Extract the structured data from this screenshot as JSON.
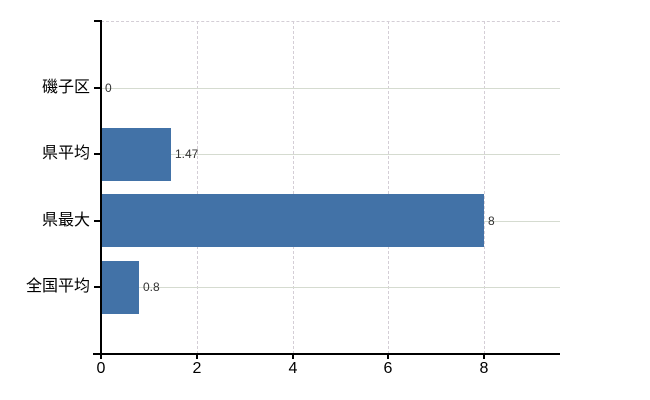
{
  "chart_data": {
    "type": "bar",
    "orientation": "horizontal",
    "title": "",
    "xlabel": "",
    "ylabel": "",
    "categories": [
      "磯子区",
      "県平均",
      "県最大",
      "全国平均"
    ],
    "values": [
      0,
      1.47,
      8,
      0.8
    ],
    "value_labels": [
      "0",
      "1.47",
      "8",
      "0.8"
    ],
    "x_axis": {
      "min": 0,
      "max": 9.58,
      "ticks": [
        0,
        2,
        4,
        6,
        8
      ],
      "tick_labels": [
        "0",
        "2",
        "4",
        "6",
        "8"
      ]
    },
    "grid": {
      "vertical": "dashed",
      "horizontal": "solid"
    },
    "legend": false,
    "colors": {
      "bar": "#4272a7",
      "axis": "#000000",
      "grid_horizontal": "#d5dbd0",
      "grid_vertical": "#d4ced6",
      "category_text": "#000000",
      "tick_text": "#000000",
      "value_text": "#333333",
      "background": "#ffffff"
    }
  }
}
